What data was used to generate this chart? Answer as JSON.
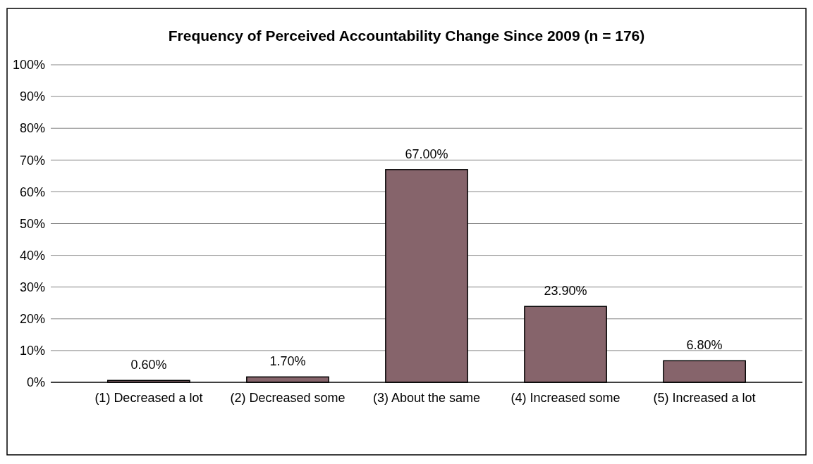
{
  "chart_data": {
    "type": "bar",
    "title": "Frequency of Perceived Accountability Change Since 2009 (n = 176)",
    "categories": [
      "(1) Decreased a lot",
      "(2) Decreased some",
      "(3) About the same",
      "(4) Increased some",
      "(5) Increased a lot"
    ],
    "values": [
      0.6,
      1.7,
      67,
      23.9,
      6.8
    ],
    "value_labels": [
      "0.60%",
      "1.70%",
      "67.00%",
      "23.90%",
      "6.80%"
    ],
    "color": "#86646b",
    "ylim": [
      0,
      100
    ],
    "yticks": [
      {
        "value": 0,
        "label": "0%"
      },
      {
        "value": 10,
        "label": "10%"
      },
      {
        "value": 20,
        "label": "20%"
      },
      {
        "value": 30,
        "label": "30%"
      },
      {
        "value": 40,
        "label": "40%"
      },
      {
        "value": 50,
        "label": "50%"
      },
      {
        "value": 60,
        "label": "60%"
      },
      {
        "value": 70,
        "label": "70%"
      },
      {
        "value": 80,
        "label": "80%"
      },
      {
        "value": 90,
        "label": "90%"
      },
      {
        "value": 100,
        "label": "100%"
      }
    ],
    "grid": "y"
  }
}
